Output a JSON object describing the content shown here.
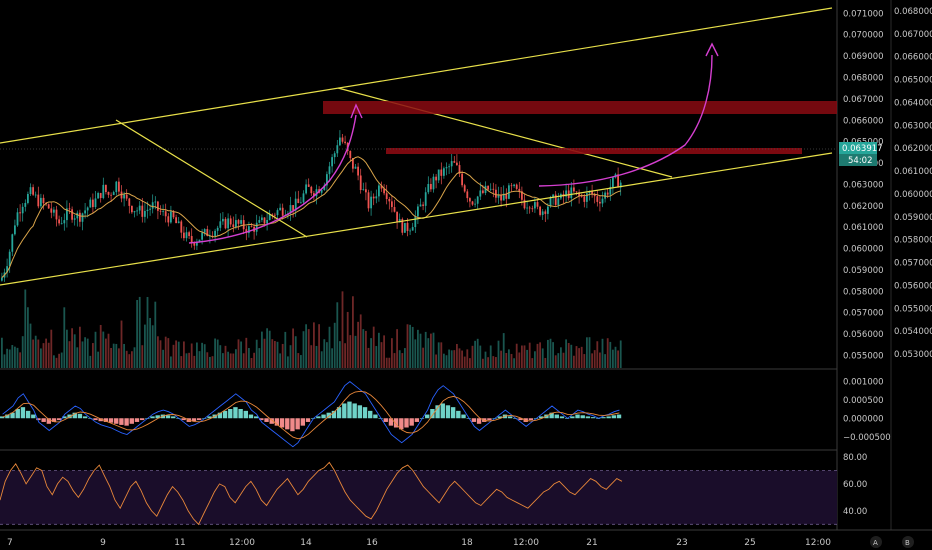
{
  "chart_data": [
    {
      "type": "candlestick",
      "title": "",
      "price_axis": {
        "ticks": [
          "0.071000",
          "0.070000",
          "0.069000",
          "0.068000",
          "0.067000",
          "0.066000",
          "0.065000",
          "0.064000",
          "0.063000",
          "0.062000",
          "0.061000",
          "0.060000",
          "0.059000",
          "0.058000",
          "0.057000",
          "0.056000",
          "0.055000"
        ],
        "ylim": [
          0.05465,
          0.07125
        ]
      },
      "volume_axis": {
        "ticks": [
          "0.068000",
          "0.067000",
          "0.066000",
          "0.065000",
          "0.064000",
          "0.063000",
          "0.062000",
          "0.061000",
          "0.060000",
          "0.059000",
          "0.058000",
          "0.057000",
          "0.056000",
          "0.055000",
          "0.054000",
          "0.053000"
        ]
      },
      "current_price_label": "0.063917",
      "countdown_label": "54:02",
      "x_axis_labels": [
        "7",
        "9",
        "11",
        "12:00",
        "14",
        "16",
        "18",
        "12:00",
        "21",
        "23",
        "25",
        "12:00"
      ],
      "price_path": [
        [
          0,
          0.0585
        ],
        [
          8,
          0.0597
        ],
        [
          15,
          0.0615
        ],
        [
          22,
          0.0622
        ],
        [
          30,
          0.0626
        ],
        [
          38,
          0.0622
        ],
        [
          48,
          0.0619
        ],
        [
          58,
          0.0612
        ],
        [
          68,
          0.0617
        ],
        [
          78,
          0.0615
        ],
        [
          88,
          0.062
        ],
        [
          96,
          0.0623
        ],
        [
          102,
          0.0628
        ],
        [
          108,
          0.0625
        ],
        [
          116,
          0.0631
        ],
        [
          124,
          0.0623
        ],
        [
          132,
          0.0619
        ],
        [
          142,
          0.0617
        ],
        [
          152,
          0.062
        ],
        [
          162,
          0.0616
        ],
        [
          172,
          0.0614
        ],
        [
          182,
          0.0607
        ],
        [
          190,
          0.0603
        ],
        [
          198,
          0.0605
        ],
        [
          208,
          0.0608
        ],
        [
          218,
          0.061
        ],
        [
          228,
          0.0613
        ],
        [
          238,
          0.0611
        ],
        [
          248,
          0.0609
        ],
        [
          258,
          0.0611
        ],
        [
          268,
          0.0615
        ],
        [
          278,
          0.0618
        ],
        [
          288,
          0.0619
        ],
        [
          298,
          0.0621
        ],
        [
          306,
          0.0628
        ],
        [
          314,
          0.0627
        ],
        [
          322,
          0.063
        ],
        [
          328,
          0.0638
        ],
        [
          334,
          0.0645
        ],
        [
          338,
          0.0653
        ],
        [
          344,
          0.0648
        ],
        [
          350,
          0.064
        ],
        [
          356,
          0.0636
        ],
        [
          362,
          0.0627
        ],
        [
          368,
          0.062
        ],
        [
          374,
          0.0625
        ],
        [
          380,
          0.0631
        ],
        [
          386,
          0.0626
        ],
        [
          392,
          0.062
        ],
        [
          398,
          0.0612
        ],
        [
          404,
          0.0609
        ],
        [
          410,
          0.0611
        ],
        [
          416,
          0.0616
        ],
        [
          422,
          0.0622
        ],
        [
          428,
          0.0628
        ],
        [
          434,
          0.0633
        ],
        [
          440,
          0.0635
        ],
        [
          446,
          0.0637
        ],
        [
          452,
          0.064
        ],
        [
          458,
          0.0636
        ],
        [
          464,
          0.0628
        ],
        [
          470,
          0.0622
        ],
        [
          476,
          0.0624
        ],
        [
          482,
          0.0626
        ],
        [
          488,
          0.0628
        ],
        [
          494,
          0.0625
        ],
        [
          500,
          0.0623
        ],
        [
          506,
          0.0626
        ],
        [
          512,
          0.0628
        ],
        [
          518,
          0.0625
        ],
        [
          524,
          0.0621
        ],
        [
          530,
          0.0622
        ],
        [
          536,
          0.0618
        ],
        [
          542,
          0.0618
        ],
        [
          548,
          0.0621
        ],
        [
          554,
          0.0623
        ],
        [
          560,
          0.0623
        ],
        [
          566,
          0.0626
        ],
        [
          572,
          0.0626
        ],
        [
          578,
          0.0624
        ],
        [
          584,
          0.0624
        ],
        [
          590,
          0.0626
        ],
        [
          596,
          0.0623
        ],
        [
          602,
          0.0624
        ],
        [
          608,
          0.0628
        ],
        [
          614,
          0.0632
        ],
        [
          620,
          0.0631
        ]
      ],
      "volume_profile": [
        0.35,
        0.3,
        0.9,
        0.4,
        0.5,
        0.3,
        0.6,
        0.4,
        0.3,
        0.45,
        0.35,
        0.5,
        0.3,
        0.7,
        1.0,
        0.4,
        0.3,
        0.35,
        0.3,
        0.25,
        0.3,
        0.25,
        0.3,
        0.35,
        0.3,
        0.4,
        0.3,
        0.35,
        0.4,
        0.5,
        0.45,
        0.6,
        0.8,
        0.7,
        0.55,
        0.4,
        0.35,
        0.3,
        0.45,
        0.5,
        0.4,
        0.35,
        0.3,
        0.25,
        0.3,
        0.3,
        0.25,
        0.3,
        0.35,
        0.3,
        0.25,
        0.25,
        0.3,
        0.3,
        0.3,
        0.25,
        0.35,
        0.3,
        0.3,
        0.3
      ],
      "macd_axis": {
        "ticks": [
          "0.001000",
          "0.000500",
          "0.000000",
          "−0.000500"
        ],
        "ylim": [
          -0.00075,
          0.00125
        ]
      },
      "macd_histogram": [
        5e-05,
        0.0001,
        0.00015,
        0.00025,
        0.0003,
        0.0002,
        0.0001,
        -5e-05,
        -0.0001,
        -0.00015,
        -0.0001,
        -5e-05,
        5e-05,
        0.0001,
        0.00015,
        0.00012,
        5e-05,
        0.0,
        -5e-05,
        -8e-05,
        -0.0001,
        -0.00012,
        -0.00015,
        -0.00018,
        -0.0002,
        -0.00015,
        -0.0001,
        -5e-05,
        0.0,
        5e-05,
        8e-05,
        0.0001,
        8e-05,
        5e-05,
        0.0,
        -5e-05,
        -0.0001,
        -8e-05,
        -5e-05,
        0.0,
        5e-05,
        0.0001,
        0.00015,
        0.0002,
        0.00025,
        0.0003,
        0.00025,
        0.0002,
        0.0001,
        5e-05,
        -5e-05,
        -0.0001,
        -0.00015,
        -0.0002,
        -0.00025,
        -0.0003,
        -0.00035,
        -0.0003,
        -0.0002,
        -0.0001,
        0.0,
        5e-05,
        0.0001,
        0.00015,
        0.0002,
        0.0003,
        0.0004,
        0.00045,
        0.0004,
        0.00035,
        0.0003,
        0.0002,
        0.0001,
        0.0,
        -0.0001,
        -0.0002,
        -0.00025,
        -0.0003,
        -0.00025,
        -0.0002,
        -0.0001,
        0.0,
        0.0001,
        0.00025,
        0.00035,
        0.0004,
        0.00035,
        0.0003,
        0.0002,
        0.0001,
        0.0,
        -0.0001,
        -0.00015,
        -0.0001,
        -5e-05,
        0.0,
        5e-05,
        0.0001,
        5e-05,
        0.0,
        -5e-05,
        -0.0001,
        -5e-05,
        0.0,
        5e-05,
        0.0001,
        0.00015,
        0.0001,
        5e-05,
        0.0,
        5e-05,
        0.0001,
        8e-05,
        5e-05,
        3e-05,
        0.0,
        3e-05,
        5e-05,
        8e-05,
        0.0001
      ],
      "rsi_axis": {
        "ticks": [
          "80.00",
          "60.00",
          "40.00"
        ],
        "ylim": [
          28,
          83
        ],
        "band": [
          30,
          70
        ]
      },
      "rsi_values": [
        48,
        62,
        70,
        75,
        68,
        60,
        66,
        72,
        70,
        58,
        52,
        60,
        65,
        62,
        55,
        50,
        56,
        64,
        70,
        74,
        66,
        58,
        48,
        42,
        50,
        58,
        62,
        55,
        46,
        40,
        36,
        44,
        52,
        58,
        54,
        48,
        40,
        34,
        30,
        38,
        46,
        54,
        60,
        58,
        50,
        46,
        52,
        58,
        62,
        56,
        48,
        44,
        50,
        56,
        60,
        64,
        58,
        52,
        56,
        62,
        66,
        70,
        72,
        76,
        70,
        62,
        54,
        48,
        44,
        40,
        36,
        34,
        40,
        48,
        56,
        62,
        68,
        72,
        74,
        70,
        64,
        58,
        54,
        50,
        46,
        52,
        58,
        62,
        58,
        54,
        50,
        46,
        44,
        48,
        52,
        56,
        54,
        50,
        48,
        46,
        44,
        42,
        46,
        50,
        54,
        56,
        60,
        62,
        58,
        54,
        52,
        56,
        60,
        64,
        62,
        58,
        56,
        60,
        64,
        62
      ]
    }
  ]
}
